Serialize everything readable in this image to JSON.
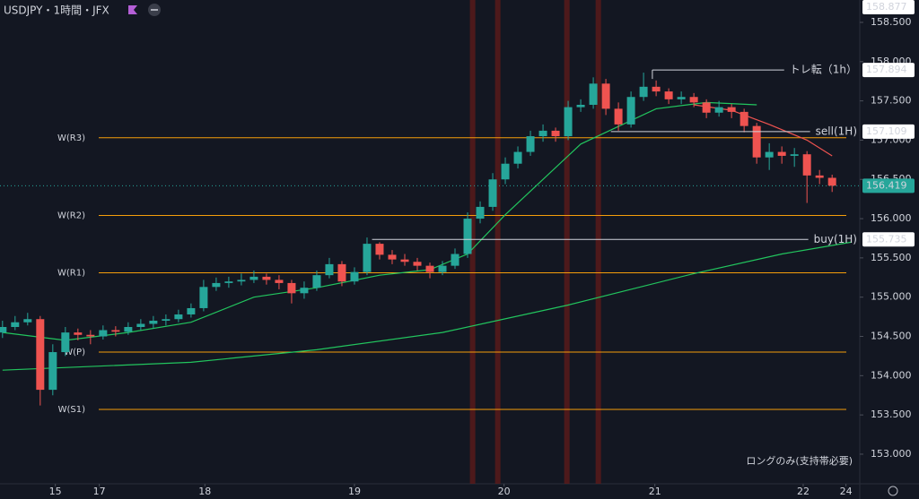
{
  "chart_data": {
    "type": "candlestick",
    "title": "USDJPY・1時間・JFX",
    "up_color": "#26a69a",
    "down_color": "#ef5350",
    "ohlc": [
      [
        154.55,
        154.7,
        154.48,
        154.62
      ],
      [
        154.62,
        154.76,
        154.58,
        154.68
      ],
      [
        154.68,
        154.8,
        154.64,
        154.72
      ],
      [
        154.72,
        154.76,
        153.62,
        153.82
      ],
      [
        153.82,
        154.4,
        153.75,
        154.3
      ],
      [
        154.3,
        154.62,
        154.25,
        154.55
      ],
      [
        154.55,
        154.6,
        154.45,
        154.52
      ],
      [
        154.52,
        154.58,
        154.4,
        154.5
      ],
      [
        154.5,
        154.64,
        154.46,
        154.58
      ],
      [
        154.58,
        154.63,
        154.5,
        154.56
      ],
      [
        154.56,
        154.68,
        154.52,
        154.62
      ],
      [
        154.62,
        154.72,
        154.58,
        154.66
      ],
      [
        154.66,
        154.76,
        154.6,
        154.7
      ],
      [
        154.7,
        154.78,
        154.64,
        154.72
      ],
      [
        154.72,
        154.84,
        154.68,
        154.78
      ],
      [
        154.78,
        154.92,
        154.74,
        154.86
      ],
      [
        154.86,
        155.22,
        154.82,
        155.13
      ],
      [
        155.13,
        155.25,
        155.08,
        155.18
      ],
      [
        155.18,
        155.26,
        155.12,
        155.2
      ],
      [
        155.2,
        155.3,
        155.15,
        155.22
      ],
      [
        155.22,
        155.34,
        155.18,
        155.26
      ],
      [
        155.26,
        155.3,
        155.16,
        155.22
      ],
      [
        155.22,
        155.28,
        155.1,
        155.18
      ],
      [
        155.18,
        155.22,
        154.92,
        155.05
      ],
      [
        155.05,
        155.2,
        154.98,
        155.12
      ],
      [
        155.12,
        155.34,
        155.08,
        155.28
      ],
      [
        155.28,
        155.5,
        155.24,
        155.42
      ],
      [
        155.42,
        155.46,
        155.14,
        155.2
      ],
      [
        155.2,
        155.38,
        155.16,
        155.32
      ],
      [
        155.32,
        155.76,
        155.28,
        155.68
      ],
      [
        155.68,
        155.7,
        155.48,
        155.54
      ],
      [
        155.54,
        155.6,
        155.42,
        155.48
      ],
      [
        155.48,
        155.55,
        155.4,
        155.45
      ],
      [
        155.45,
        155.5,
        155.34,
        155.4
      ],
      [
        155.4,
        155.44,
        155.24,
        155.32
      ],
      [
        155.32,
        155.46,
        155.28,
        155.4
      ],
      [
        155.4,
        155.62,
        155.36,
        155.55
      ],
      [
        155.55,
        156.08,
        155.5,
        156.0
      ],
      [
        156.0,
        156.22,
        155.94,
        156.15
      ],
      [
        156.15,
        156.58,
        156.1,
        156.5
      ],
      [
        156.5,
        156.78,
        156.44,
        156.7
      ],
      [
        156.7,
        156.92,
        156.64,
        156.85
      ],
      [
        156.85,
        157.12,
        156.8,
        157.05
      ],
      [
        157.05,
        157.2,
        156.98,
        157.12
      ],
      [
        157.12,
        157.16,
        156.98,
        157.05
      ],
      [
        157.05,
        157.5,
        157.0,
        157.42
      ],
      [
        157.42,
        157.52,
        157.36,
        157.45
      ],
      [
        157.45,
        157.8,
        157.4,
        157.72
      ],
      [
        157.72,
        157.78,
        157.32,
        157.4
      ],
      [
        157.4,
        157.48,
        157.12,
        157.2
      ],
      [
        157.2,
        157.62,
        157.16,
        157.55
      ],
      [
        157.55,
        157.86,
        157.5,
        157.68
      ],
      [
        157.68,
        157.76,
        157.56,
        157.62
      ],
      [
        157.62,
        157.66,
        157.46,
        157.52
      ],
      [
        157.52,
        157.62,
        157.46,
        157.55
      ],
      [
        157.55,
        157.6,
        157.42,
        157.48
      ],
      [
        157.48,
        157.52,
        157.28,
        157.35
      ],
      [
        157.35,
        157.5,
        157.3,
        157.42
      ],
      [
        157.42,
        157.46,
        157.28,
        157.36
      ],
      [
        157.36,
        157.4,
        157.1,
        157.18
      ],
      [
        157.18,
        157.22,
        156.7,
        156.78
      ],
      [
        156.78,
        156.96,
        156.62,
        156.85
      ],
      [
        156.85,
        156.92,
        156.7,
        156.8
      ],
      [
        156.8,
        156.9,
        156.66,
        156.82
      ],
      [
        156.82,
        156.86,
        156.2,
        156.55
      ],
      [
        156.55,
        156.62,
        156.44,
        156.52
      ],
      [
        156.52,
        156.56,
        156.34,
        156.42
      ]
    ],
    "lines": [
      {
        "color": "#22c55e",
        "x": [
          0,
          5,
          10,
          15,
          20,
          25,
          30,
          34,
          37,
          40,
          43,
          46,
          48,
          52,
          56,
          60
        ],
        "values": [
          154.55,
          154.45,
          154.55,
          154.68,
          155.0,
          155.12,
          155.28,
          155.35,
          155.55,
          156.05,
          156.5,
          156.95,
          157.1,
          157.4,
          157.48,
          157.45
        ]
      },
      {
        "color": "#ef5350",
        "x": [
          55,
          58,
          61,
          64,
          66
        ],
        "values": [
          157.45,
          157.38,
          157.2,
          157.0,
          156.8
        ]
      },
      {
        "color": "#22c55e",
        "x": [
          0,
          15,
          25,
          35,
          45,
          55,
          62,
          67.5
        ],
        "values": [
          154.07,
          154.17,
          154.33,
          154.55,
          154.9,
          155.3,
          155.55,
          155.7
        ]
      }
    ],
    "xlim": [
      -0.2,
      68.2
    ],
    "xticks": [
      {
        "value": 4.2,
        "label": "15"
      },
      {
        "value": 7.7,
        "label": "17"
      },
      {
        "value": 16.1,
        "label": "18"
      },
      {
        "value": 28,
        "label": "19"
      },
      {
        "value": 39.9,
        "label": "20"
      },
      {
        "value": 51.9,
        "label": "21"
      },
      {
        "value": 63.7,
        "label": "22"
      },
      {
        "value": 67.1,
        "label": "24"
      }
    ],
    "ylim": [
      152.623,
      158.785
    ],
    "yticks": [
      {
        "value": 153,
        "label": "153.000"
      },
      {
        "value": 153.5,
        "label": "153.500"
      },
      {
        "value": 154,
        "label": "154.000"
      },
      {
        "value": 154.5,
        "label": "154.500"
      },
      {
        "value": 155,
        "label": "155.000"
      },
      {
        "value": 155.5,
        "label": "155.500"
      },
      {
        "value": 156,
        "label": "156.000"
      },
      {
        "value": 156.5,
        "label": "156.500"
      },
      {
        "value": 157,
        "label": "157.000"
      },
      {
        "value": 157.5,
        "label": "157.500"
      },
      {
        "value": 158,
        "label": "158.000"
      },
      {
        "value": 158.5,
        "label": "158.500"
      }
    ],
    "level_color": "#f59e0b",
    "levels": [
      {
        "label": "W(R3)",
        "value": 157.03
      },
      {
        "label": "W(R2)",
        "value": 156.04
      },
      {
        "label": "W(R1)",
        "value": 155.31
      },
      {
        "label": "W(P)",
        "value": 154.3
      },
      {
        "label": "W(S1)",
        "value": 153.57
      }
    ],
    "highlight_color": "#5c1a1a",
    "highlight_x": [
      37.4,
      39.4,
      44.9,
      47.4
    ],
    "annotations": [
      {
        "text": "トレ転（1h）",
        "value": 157.894,
        "x": 51.7
      },
      {
        "text": "sell(1H)",
        "value": 157.109,
        "x": 48.4
      },
      {
        "text": "buy(1H)",
        "value": 155.735,
        "x": 29.4
      }
    ],
    "last_price": 156.419,
    "last_price_color": "#26a69a",
    "high_tag": 158.877,
    "note": "ロングのみ(支持帯必要)",
    "note_color": "#3b82f6"
  }
}
